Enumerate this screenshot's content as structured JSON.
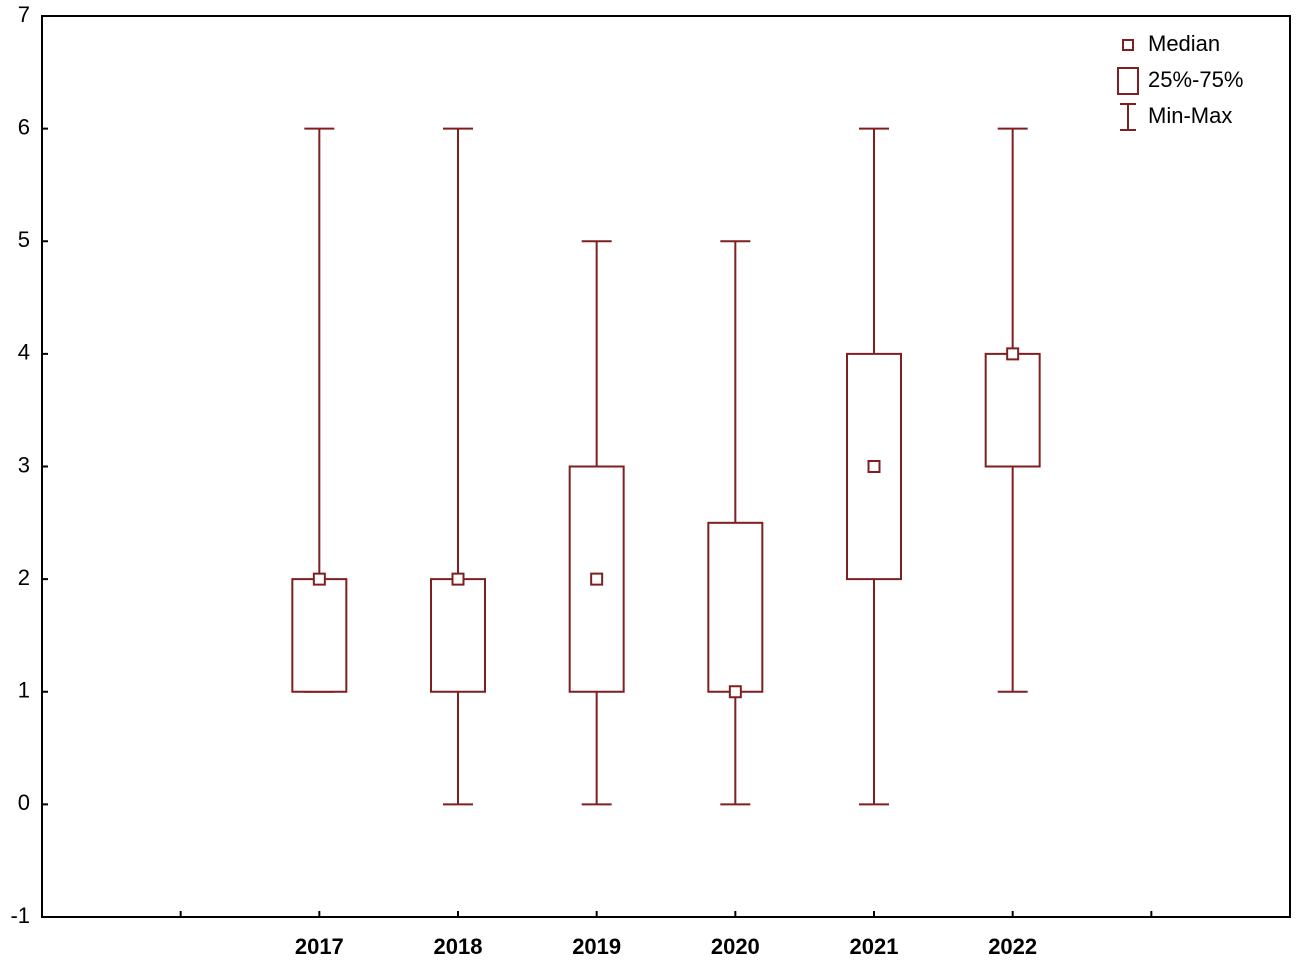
{
  "chart_data": {
    "type": "box",
    "categories": [
      null,
      "2017",
      "2018",
      "2019",
      "2020",
      "2021",
      "2022",
      null
    ],
    "min": [
      null,
      1,
      0,
      0,
      0,
      0,
      1,
      null
    ],
    "q1": [
      null,
      1,
      1,
      1,
      1,
      2,
      3,
      null
    ],
    "median": [
      null,
      2,
      2,
      2,
      1,
      3,
      4,
      null
    ],
    "q3": [
      null,
      2,
      2,
      3,
      2.5,
      4,
      4,
      null
    ],
    "max": [
      null,
      6,
      6,
      5,
      5,
      6,
      6,
      null
    ],
    "color": "#7f1f1f",
    "ylim": [
      -1,
      7
    ],
    "yticks": [
      -1,
      0,
      1,
      2,
      3,
      4,
      5,
      6,
      7
    ],
    "legend": [
      "Median",
      "25%-75%",
      "Min-Max"
    ],
    "legend_position": "upper right"
  }
}
